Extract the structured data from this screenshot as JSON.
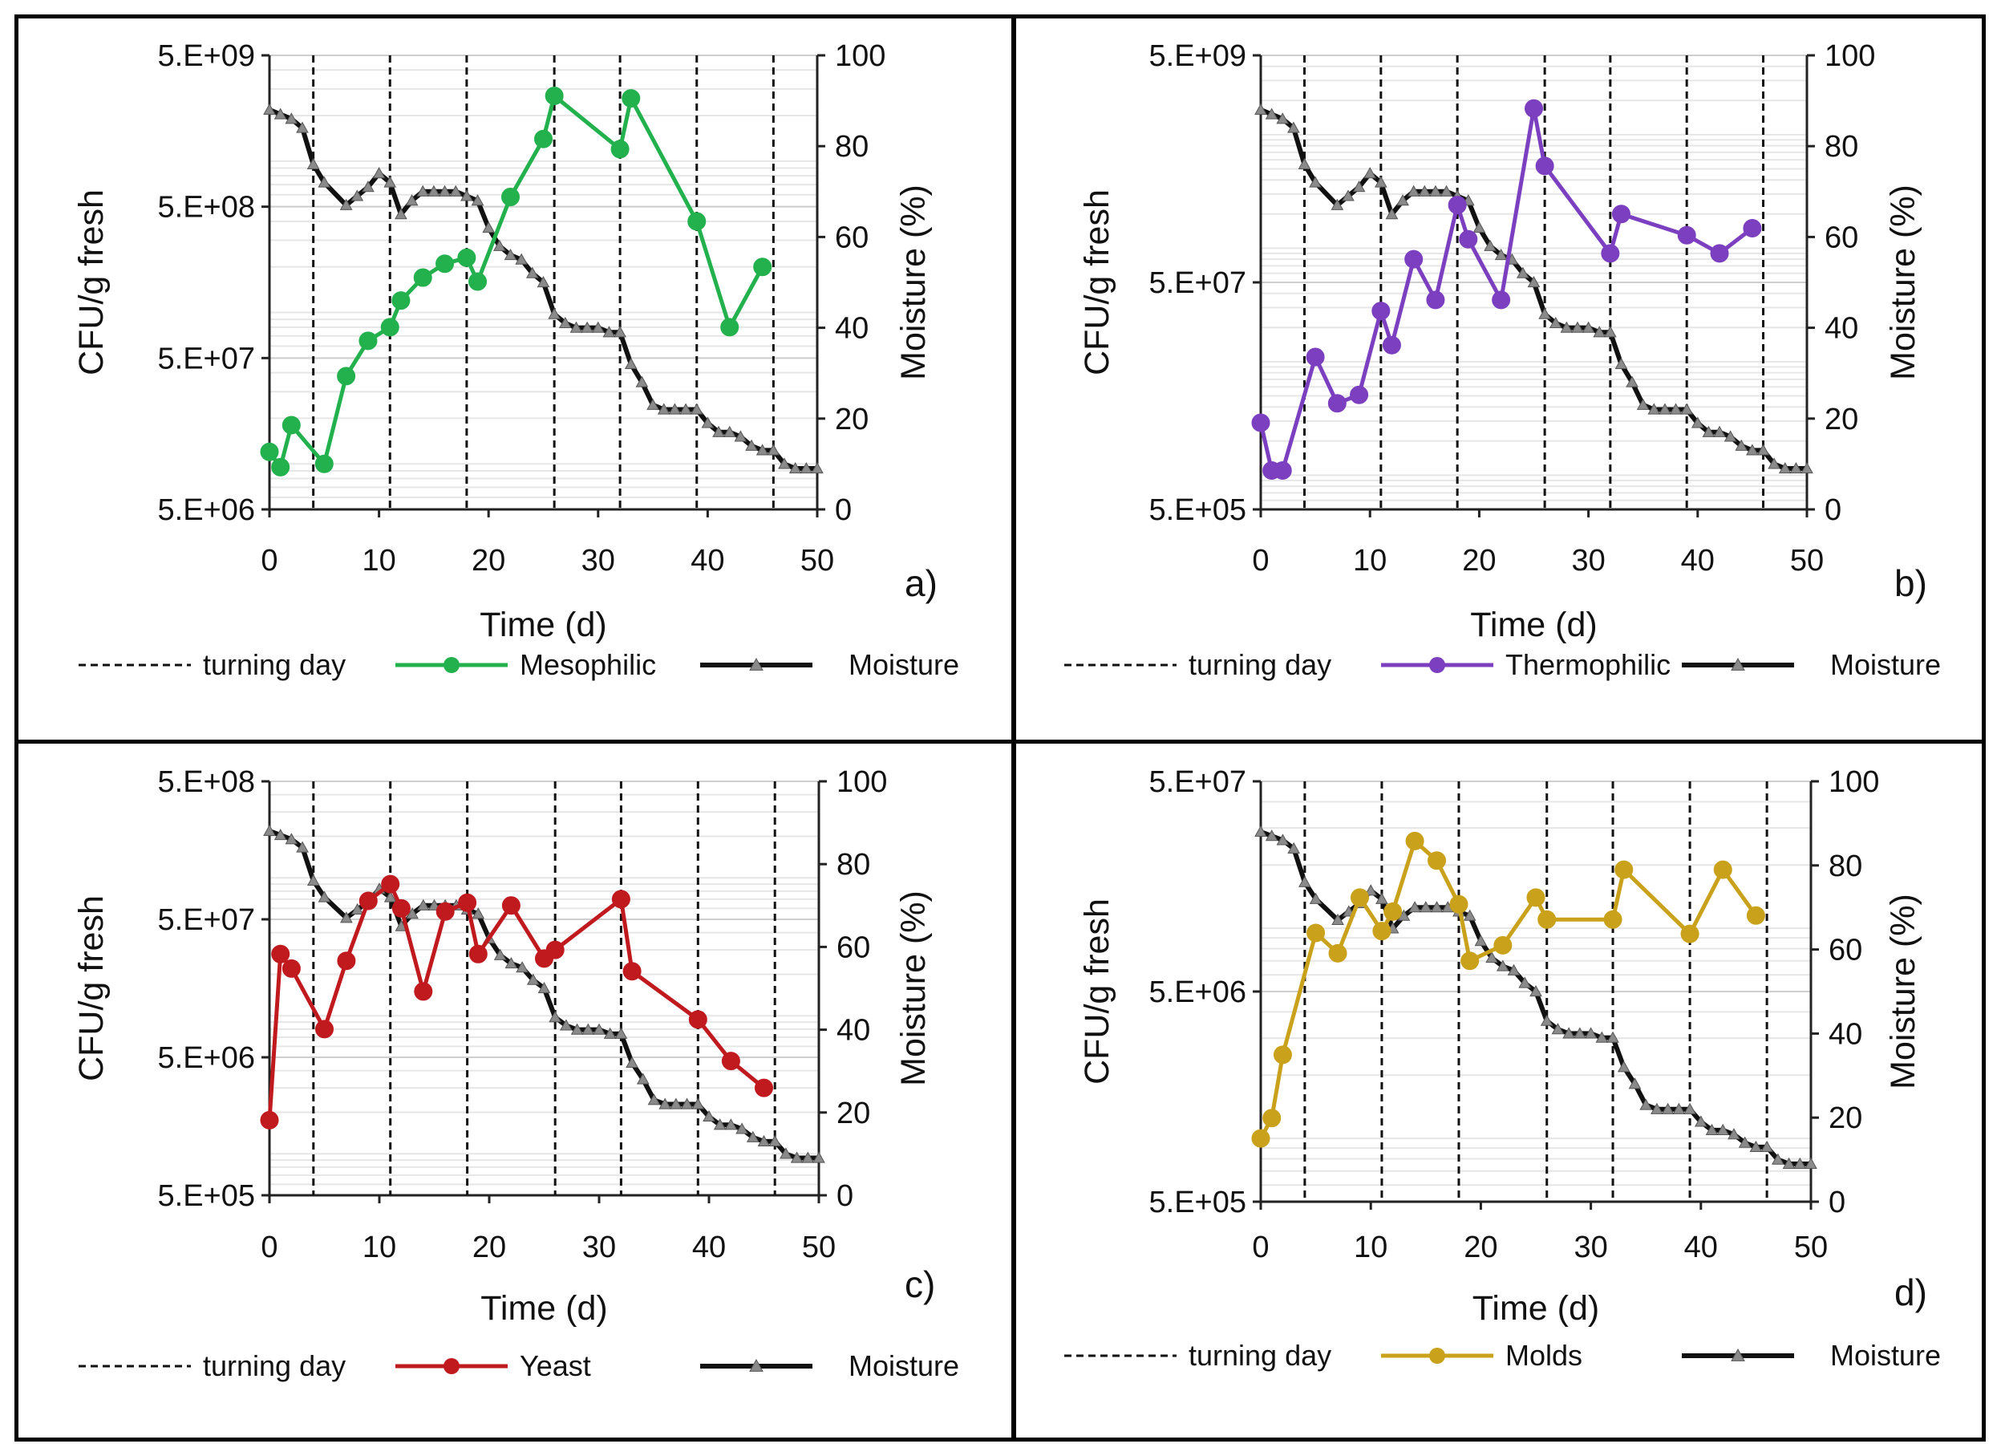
{
  "chart_data": [
    {
      "type": "line",
      "panel_label": "a)",
      "xlabel": "Time (d)",
      "ylabel": "CFU/g  fresh",
      "y2label": "Moisture (%)",
      "xlim": [
        0,
        50
      ],
      "xticks": [
        "0",
        "10",
        "20",
        "30",
        "40",
        "50"
      ],
      "yscale": "log",
      "ylim": [
        5000000,
        5000000000
      ],
      "yticks": [
        "5.E+06",
        "5.E+07",
        "5.E+08",
        "5.E+09"
      ],
      "y2lim": [
        0,
        100
      ],
      "y2ticks": [
        "0",
        "20",
        "40",
        "60",
        "80",
        "100"
      ],
      "turning_days": [
        4,
        11,
        18,
        26,
        32,
        39,
        46
      ],
      "legend": {
        "turning": "turning day",
        "series": "Mesophilic",
        "moisture": "Moisture"
      },
      "series_color": "#22b14c",
      "series": {
        "name": "Mesophilic",
        "x": [
          0,
          1,
          2,
          5,
          7,
          9,
          11,
          12,
          14,
          16,
          18,
          19,
          22,
          25,
          26,
          32,
          33,
          39,
          42,
          45
        ],
        "y": [
          12000000,
          9500000,
          18000000,
          10000000,
          38000000,
          65000000,
          80000000,
          120000000,
          170000000,
          210000000,
          230000000,
          160000000,
          580000000,
          1400000000,
          2700000000,
          1200000000,
          2600000000,
          400000000,
          80000000,
          200000000
        ]
      }
    },
    {
      "type": "line",
      "panel_label": "b)",
      "xlabel": "Time (d)",
      "ylabel": "CFU/g  fresh",
      "y2label": "Moisture (%)",
      "xlim": [
        0,
        50
      ],
      "xticks": [
        "0",
        "10",
        "20",
        "30",
        "40",
        "50"
      ],
      "yscale": "log",
      "ylim": [
        500000,
        5000000000
      ],
      "yticks": [
        "5.E+05",
        "5.E+07",
        "5.E+09"
      ],
      "y2lim": [
        0,
        100
      ],
      "y2ticks": [
        "0",
        "20",
        "40",
        "60",
        "80",
        "100"
      ],
      "turning_days": [
        4,
        11,
        18,
        26,
        32,
        39,
        46
      ],
      "legend": {
        "turning": "turning day",
        "series": "Thermophilic",
        "moisture": "Moisture"
      },
      "series_color": "#7b3fbf",
      "series": {
        "name": "Thermophilic",
        "x": [
          0,
          1,
          2,
          5,
          7,
          9,
          11,
          12,
          14,
          16,
          18,
          19,
          22,
          25,
          26,
          32,
          33,
          39,
          42,
          45
        ],
        "y": [
          2900000,
          1100000,
          1100000,
          11000000,
          4300000,
          5100000,
          28000000,
          14000000,
          80000000,
          35000000,
          240000000,
          120000000,
          35000000,
          1700000000,
          530000000,
          90000000,
          200000000,
          130000000,
          90000000,
          150000000
        ]
      }
    },
    {
      "type": "line",
      "panel_label": "c)",
      "xlabel": "Time (d)",
      "ylabel": "CFU/g  fresh",
      "y2label": "Moisture (%)",
      "xlim": [
        0,
        50
      ],
      "xticks": [
        "0",
        "10",
        "20",
        "30",
        "40",
        "50"
      ],
      "yscale": "log",
      "ylim": [
        500000,
        500000000
      ],
      "yticks": [
        "5.E+05",
        "5.E+06",
        "5.E+07",
        "5.E+08"
      ],
      "y2lim": [
        0,
        100
      ],
      "y2ticks": [
        "0",
        "20",
        "40",
        "60",
        "80",
        "100"
      ],
      "turning_days": [
        4,
        11,
        18,
        26,
        32,
        39,
        46
      ],
      "legend": {
        "turning": "turning day",
        "series": "Yeast",
        "moisture": "Moisture"
      },
      "series_color": "#c0191e",
      "series": {
        "name": "Yeast",
        "x": [
          0,
          1,
          2,
          5,
          7,
          9,
          11,
          12,
          14,
          16,
          18,
          19,
          22,
          25,
          26,
          32,
          33,
          39,
          42,
          45
        ],
        "y": [
          1750000,
          28000000,
          22000000,
          8000000,
          25000000,
          68000000,
          90000000,
          60000000,
          15000000,
          57000000,
          66000000,
          28000000,
          63000000,
          26000000,
          30000000,
          70000000,
          21000000,
          9400000,
          4700000,
          3000000
        ]
      }
    },
    {
      "type": "line",
      "panel_label": "d)",
      "xlabel": "Time (d)",
      "ylabel": "CFU/g  fresh",
      "y2label": "Moisture (%)",
      "xlim": [
        0,
        50
      ],
      "xticks": [
        "0",
        "10",
        "20",
        "30",
        "40",
        "50"
      ],
      "yscale": "log",
      "ylim": [
        500000,
        50000000
      ],
      "yticks": [
        "5.E+05",
        "5.E+06",
        "5.E+07"
      ],
      "y2lim": [
        0,
        100
      ],
      "y2ticks": [
        "0",
        "20",
        "40",
        "60",
        "80",
        "100"
      ],
      "turning_days": [
        4,
        11,
        18,
        26,
        32,
        39,
        46
      ],
      "legend": {
        "turning": "turning day",
        "series": "Molds",
        "moisture": "Moisture"
      },
      "series_color": "#c9a11a",
      "series": {
        "name": "Molds",
        "x": [
          0,
          1,
          2,
          5,
          7,
          9,
          11,
          12,
          14,
          16,
          18,
          19,
          22,
          25,
          26,
          32,
          33,
          39,
          42,
          45
        ],
        "y": [
          1000000,
          1250000,
          2500000,
          9500000,
          7600000,
          14000000,
          9700000,
          12000000,
          26000000,
          21000000,
          13000000,
          7000000,
          8300000,
          14000000,
          11000000,
          11000000,
          19000000,
          9400000,
          19000000,
          11500000
        ]
      }
    }
  ],
  "moisture": {
    "x": [
      0,
      1,
      2,
      3,
      4,
      5,
      7,
      8,
      9,
      10,
      11,
      12,
      13,
      14,
      15,
      16,
      17,
      18,
      19,
      20,
      21,
      22,
      23,
      24,
      25,
      26,
      27,
      28,
      29,
      30,
      31,
      32,
      33,
      34,
      35,
      36,
      37,
      38,
      39,
      40,
      41,
      42,
      43,
      44,
      45,
      46,
      47,
      48,
      49,
      50
    ],
    "y": [
      88,
      87,
      86,
      84,
      76,
      72,
      67,
      69,
      71,
      74,
      72,
      65,
      68,
      70,
      70,
      70,
      70,
      69,
      68,
      62,
      58,
      56,
      55,
      52,
      50,
      43,
      41,
      40,
      40,
      40,
      39,
      39,
      32,
      28,
      23,
      22,
      22,
      22,
      22,
      19,
      17,
      17,
      16,
      14,
      13,
      13,
      10,
      9,
      9,
      9
    ]
  }
}
